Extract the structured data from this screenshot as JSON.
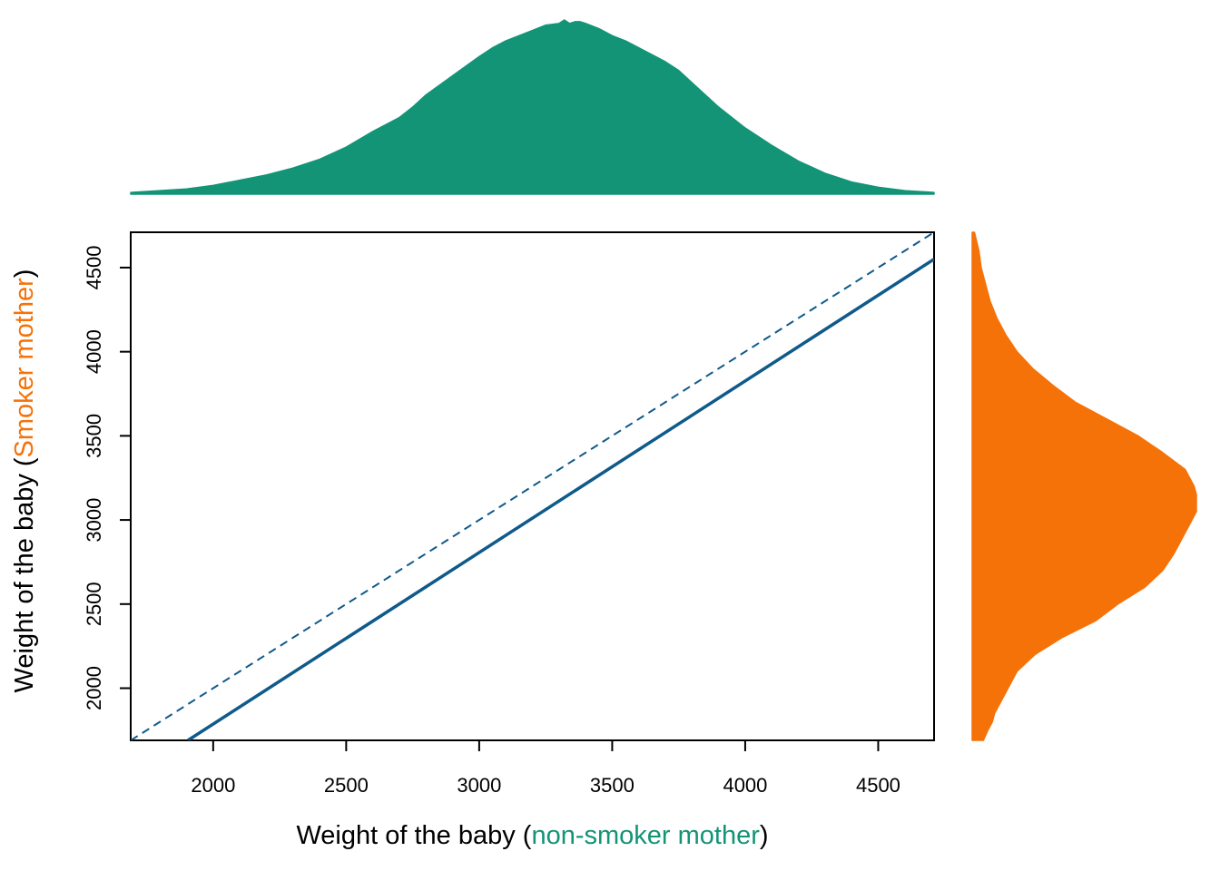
{
  "chart_data": {
    "type": "line",
    "xlabel": {
      "prefix": "Weight of the baby (",
      "highlight": "non-smoker mother",
      "suffix": ")"
    },
    "ylabel": {
      "prefix": "Weight of the baby (",
      "highlight": "Smoker mother",
      "suffix": ")"
    },
    "xlim": [
      1690,
      4710
    ],
    "ylim": [
      1690,
      4710
    ],
    "x_ticks": [
      2000,
      2500,
      3000,
      3500,
      4000,
      4500
    ],
    "y_ticks": [
      2000,
      2500,
      3000,
      3500,
      4000,
      4500
    ],
    "grid": false,
    "series": [
      {
        "style": "solid",
        "color": "#0f5a8a",
        "x": [
          1905,
          4710
        ],
        "y": [
          1690,
          4550
        ]
      },
      {
        "style": "dashed",
        "color": "#0f5a8a",
        "x": [
          1690,
          4710
        ],
        "y": [
          1690,
          4710
        ]
      }
    ],
    "marginal_x_density": {
      "color": "#139477",
      "x": [
        1690,
        1800,
        1900,
        2000,
        2100,
        2200,
        2300,
        2400,
        2500,
        2600,
        2700,
        2750,
        2800,
        2900,
        3000,
        3050,
        3100,
        3150,
        3200,
        3250,
        3300,
        3320,
        3340,
        3360,
        3380,
        3400,
        3450,
        3500,
        3550,
        3600,
        3700,
        3750,
        3800,
        3900,
        4000,
        4100,
        4200,
        4300,
        4400,
        4500,
        4600,
        4710
      ],
      "y": [
        0.01,
        0.02,
        0.03,
        0.05,
        0.08,
        0.11,
        0.15,
        0.2,
        0.27,
        0.36,
        0.44,
        0.5,
        0.57,
        0.68,
        0.79,
        0.84,
        0.88,
        0.91,
        0.94,
        0.97,
        0.98,
        1.0,
        0.98,
        0.99,
        0.99,
        0.98,
        0.95,
        0.91,
        0.88,
        0.84,
        0.76,
        0.71,
        0.64,
        0.5,
        0.38,
        0.28,
        0.19,
        0.12,
        0.07,
        0.04,
        0.02,
        0.01
      ]
    },
    "marginal_y_density": {
      "color": "#f57208",
      "y": [
        1690,
        1750,
        1800,
        1850,
        1900,
        1950,
        2000,
        2100,
        2200,
        2300,
        2400,
        2500,
        2600,
        2700,
        2800,
        2900,
        3000,
        3050,
        3100,
        3150,
        3200,
        3300,
        3400,
        3500,
        3600,
        3700,
        3800,
        3900,
        4000,
        4100,
        4200,
        4300,
        4400,
        4500,
        4600,
        4710
      ],
      "x": [
        0.05,
        0.07,
        0.09,
        0.1,
        0.12,
        0.14,
        0.16,
        0.2,
        0.28,
        0.4,
        0.55,
        0.65,
        0.77,
        0.85,
        0.9,
        0.94,
        0.98,
        1.0,
        1.0,
        1.0,
        0.99,
        0.95,
        0.85,
        0.74,
        0.6,
        0.46,
        0.36,
        0.27,
        0.2,
        0.15,
        0.11,
        0.08,
        0.06,
        0.04,
        0.03,
        0.01
      ]
    }
  }
}
